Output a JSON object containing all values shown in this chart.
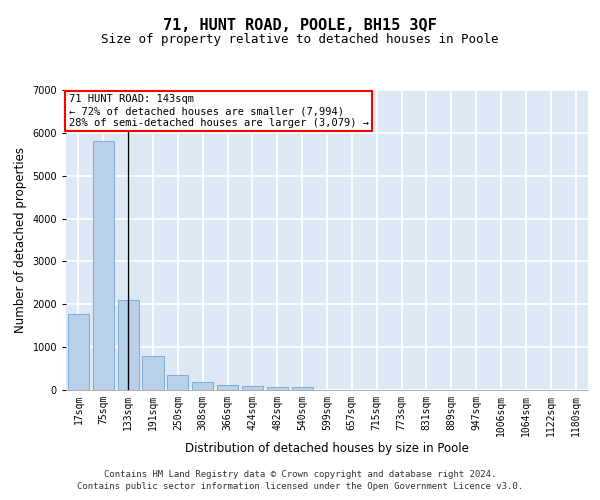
{
  "title": "71, HUNT ROAD, POOLE, BH15 3QF",
  "subtitle": "Size of property relative to detached houses in Poole",
  "xlabel": "Distribution of detached houses by size in Poole",
  "ylabel": "Number of detached properties",
  "bar_values": [
    1780,
    5800,
    2090,
    800,
    340,
    185,
    110,
    90,
    80,
    65,
    0,
    0,
    0,
    0,
    0,
    0,
    0,
    0,
    0,
    0,
    0
  ],
  "bar_labels": [
    "17sqm",
    "75sqm",
    "133sqm",
    "191sqm",
    "250sqm",
    "308sqm",
    "366sqm",
    "424sqm",
    "482sqm",
    "540sqm",
    "599sqm",
    "657sqm",
    "715sqm",
    "773sqm",
    "831sqm",
    "889sqm",
    "947sqm",
    "1006sqm",
    "1064sqm",
    "1122sqm",
    "1180sqm"
  ],
  "bar_color": "#b8d0e8",
  "bar_edge_color": "#6699cc",
  "vline_x": 2,
  "vline_color": "black",
  "annotation_text": "71 HUNT ROAD: 143sqm\n← 72% of detached houses are smaller (7,994)\n28% of semi-detached houses are larger (3,079) →",
  "annotation_box_color": "white",
  "annotation_box_edge": "red",
  "ylim": [
    0,
    7000
  ],
  "yticks": [
    0,
    1000,
    2000,
    3000,
    4000,
    5000,
    6000,
    7000
  ],
  "background_color": "#dce8f5",
  "grid_color": "white",
  "footer_line1": "Contains HM Land Registry data © Crown copyright and database right 2024.",
  "footer_line2": "Contains public sector information licensed under the Open Government Licence v3.0.",
  "title_fontsize": 11,
  "subtitle_fontsize": 9,
  "axis_label_fontsize": 8.5,
  "tick_fontsize": 7,
  "annotation_fontsize": 7.5,
  "footer_fontsize": 6.5
}
